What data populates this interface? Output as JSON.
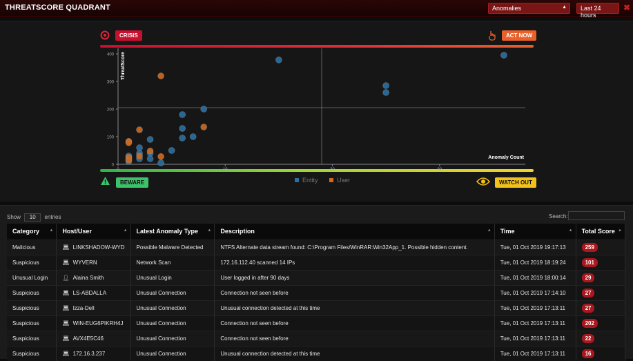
{
  "header": {
    "title": "THREATSCORE QUADRANT",
    "filter_value": "Anomalies",
    "time_value": "Last 24 hours",
    "close": "✖"
  },
  "quadrant": {
    "crisis": "CRISIS",
    "act_now": "ACT NOW",
    "beware": "BEWARE",
    "watch_out": "WATCH OUT"
  },
  "chart_data": {
    "type": "scatter",
    "xlabel": "Anomaly Count",
    "ylabel": "ThreatScore",
    "xlim": [
      0,
      38
    ],
    "ylim": [
      0,
      420
    ],
    "x_ticks": [
      0,
      10,
      20,
      30
    ],
    "y_ticks": [
      0,
      100,
      200,
      300,
      400
    ],
    "divider_x": 19,
    "divider_y": 205,
    "colors": {
      "Entity": "#2e6f9e",
      "User": "#d2691e"
    },
    "series": [
      {
        "name": "Entity",
        "points": [
          [
            1,
            30
          ],
          [
            1,
            20
          ],
          [
            1,
            10
          ],
          [
            2,
            60
          ],
          [
            2,
            40
          ],
          [
            2,
            20
          ],
          [
            3,
            90
          ],
          [
            3,
            40
          ],
          [
            3,
            20
          ],
          [
            4,
            5
          ],
          [
            5,
            50
          ],
          [
            6,
            180
          ],
          [
            6,
            130
          ],
          [
            6,
            95
          ],
          [
            7,
            100
          ],
          [
            8,
            200
          ],
          [
            15,
            378
          ],
          [
            25,
            285
          ],
          [
            25,
            260
          ],
          [
            36,
            395
          ]
        ]
      },
      {
        "name": "User",
        "points": [
          [
            1,
            83
          ],
          [
            1,
            78
          ],
          [
            1,
            25
          ],
          [
            1,
            15
          ],
          [
            2,
            125
          ],
          [
            2,
            30
          ],
          [
            3,
            48
          ],
          [
            4,
            320
          ],
          [
            4,
            28
          ],
          [
            8,
            135
          ]
        ]
      }
    ]
  },
  "table": {
    "show_label": "Show",
    "entries_count": "10",
    "entries_label": "entries",
    "search_label": "Search:",
    "columns": [
      "Category",
      "Host/User",
      "Latest Anomaly Type",
      "Description",
      "Time",
      "Total Score"
    ],
    "rows": [
      {
        "category": "Malicious",
        "icon": "laptop-icon",
        "host": "LINKSHADOW-WYD",
        "type": "Possible Malware Detected",
        "desc": "NTFS Alternate data stream found: C:\\Program Files/WinRAR:Win32App_1. Possible hidden content.",
        "time": "Tue, 01 Oct 2019 19:17:13",
        "score": "259"
      },
      {
        "category": "Suspicious",
        "icon": "laptop-icon",
        "host": "WYVERN",
        "type": "Network Scan",
        "desc": "172.16.112.40 scanned 14 IPs",
        "time": "Tue, 01 Oct 2019 18:19:24",
        "score": "101"
      },
      {
        "category": "Unusual Login",
        "icon": "user-icon",
        "host": "Alaina Smith",
        "type": "Unusual Login",
        "desc": "User logged in after 90 days",
        "time": "Tue, 01 Oct 2019 18:00:14",
        "score": "29"
      },
      {
        "category": "Suspicious",
        "icon": "laptop-icon",
        "host": "LS-ABDALLA",
        "type": "Unusual Connection",
        "desc": "Connection not seen before",
        "time": "Tue, 01 Oct 2019 17:14:10",
        "score": "27"
      },
      {
        "category": "Suspicious",
        "icon": "laptop-icon",
        "host": "Izza-Dell",
        "type": "Unusual Connection",
        "desc": "Unusual connection detected at this time",
        "time": "Tue, 01 Oct 2019 17:13:11",
        "score": "27"
      },
      {
        "category": "Suspicious",
        "icon": "laptop-icon",
        "host": "WIN-EUG6PIKRH4J",
        "type": "Unusual Connection",
        "desc": "Connection not seen before",
        "time": "Tue, 01 Oct 2019 17:13:11",
        "score": "202"
      },
      {
        "category": "Suspicious",
        "icon": "laptop-icon",
        "host": "AVX4E5C46",
        "type": "Unusual Connection",
        "desc": "Connection not seen before",
        "time": "Tue, 01 Oct 2019 17:13:11",
        "score": "22"
      },
      {
        "category": "Suspicious",
        "icon": "laptop-icon",
        "host": "172.16.3.237",
        "type": "Unusual Connection",
        "desc": "Unusual connection detected at this time",
        "time": "Tue, 01 Oct 2019 17:13:11",
        "score": "16"
      }
    ]
  }
}
